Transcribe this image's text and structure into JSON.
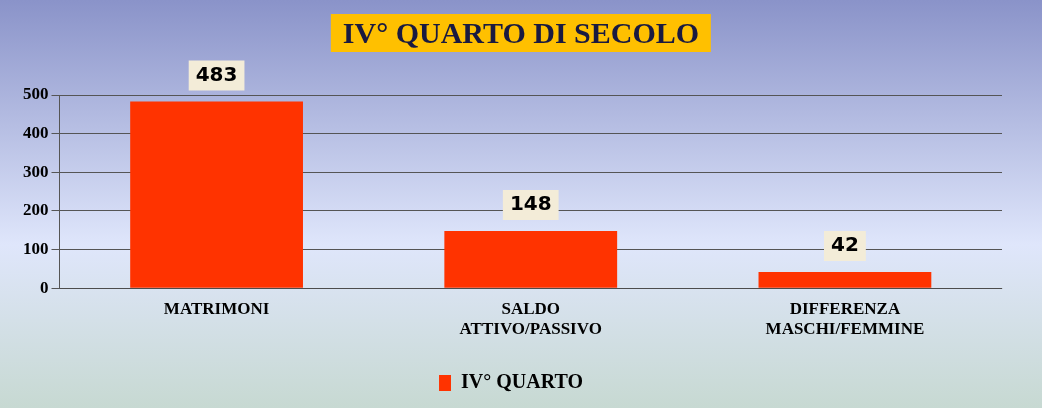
{
  "chart_data": {
    "type": "bar",
    "title": "IV° QUARTO DI SECOLO",
    "categories": [
      "MATRIMONI",
      "SALDO ATTIVO/PASSIVO",
      "DIFFERENZA MASCHI/FEMMINE"
    ],
    "series": [
      {
        "name": "IV° QUARTO",
        "color": "#ff3300",
        "values": [
          483,
          148,
          42
        ]
      }
    ],
    "ylim": [
      0,
      500
    ],
    "yticks": [
      0,
      100,
      200,
      300,
      400,
      500
    ],
    "grid": "y",
    "legend": "bottom",
    "data_labels": true
  }
}
